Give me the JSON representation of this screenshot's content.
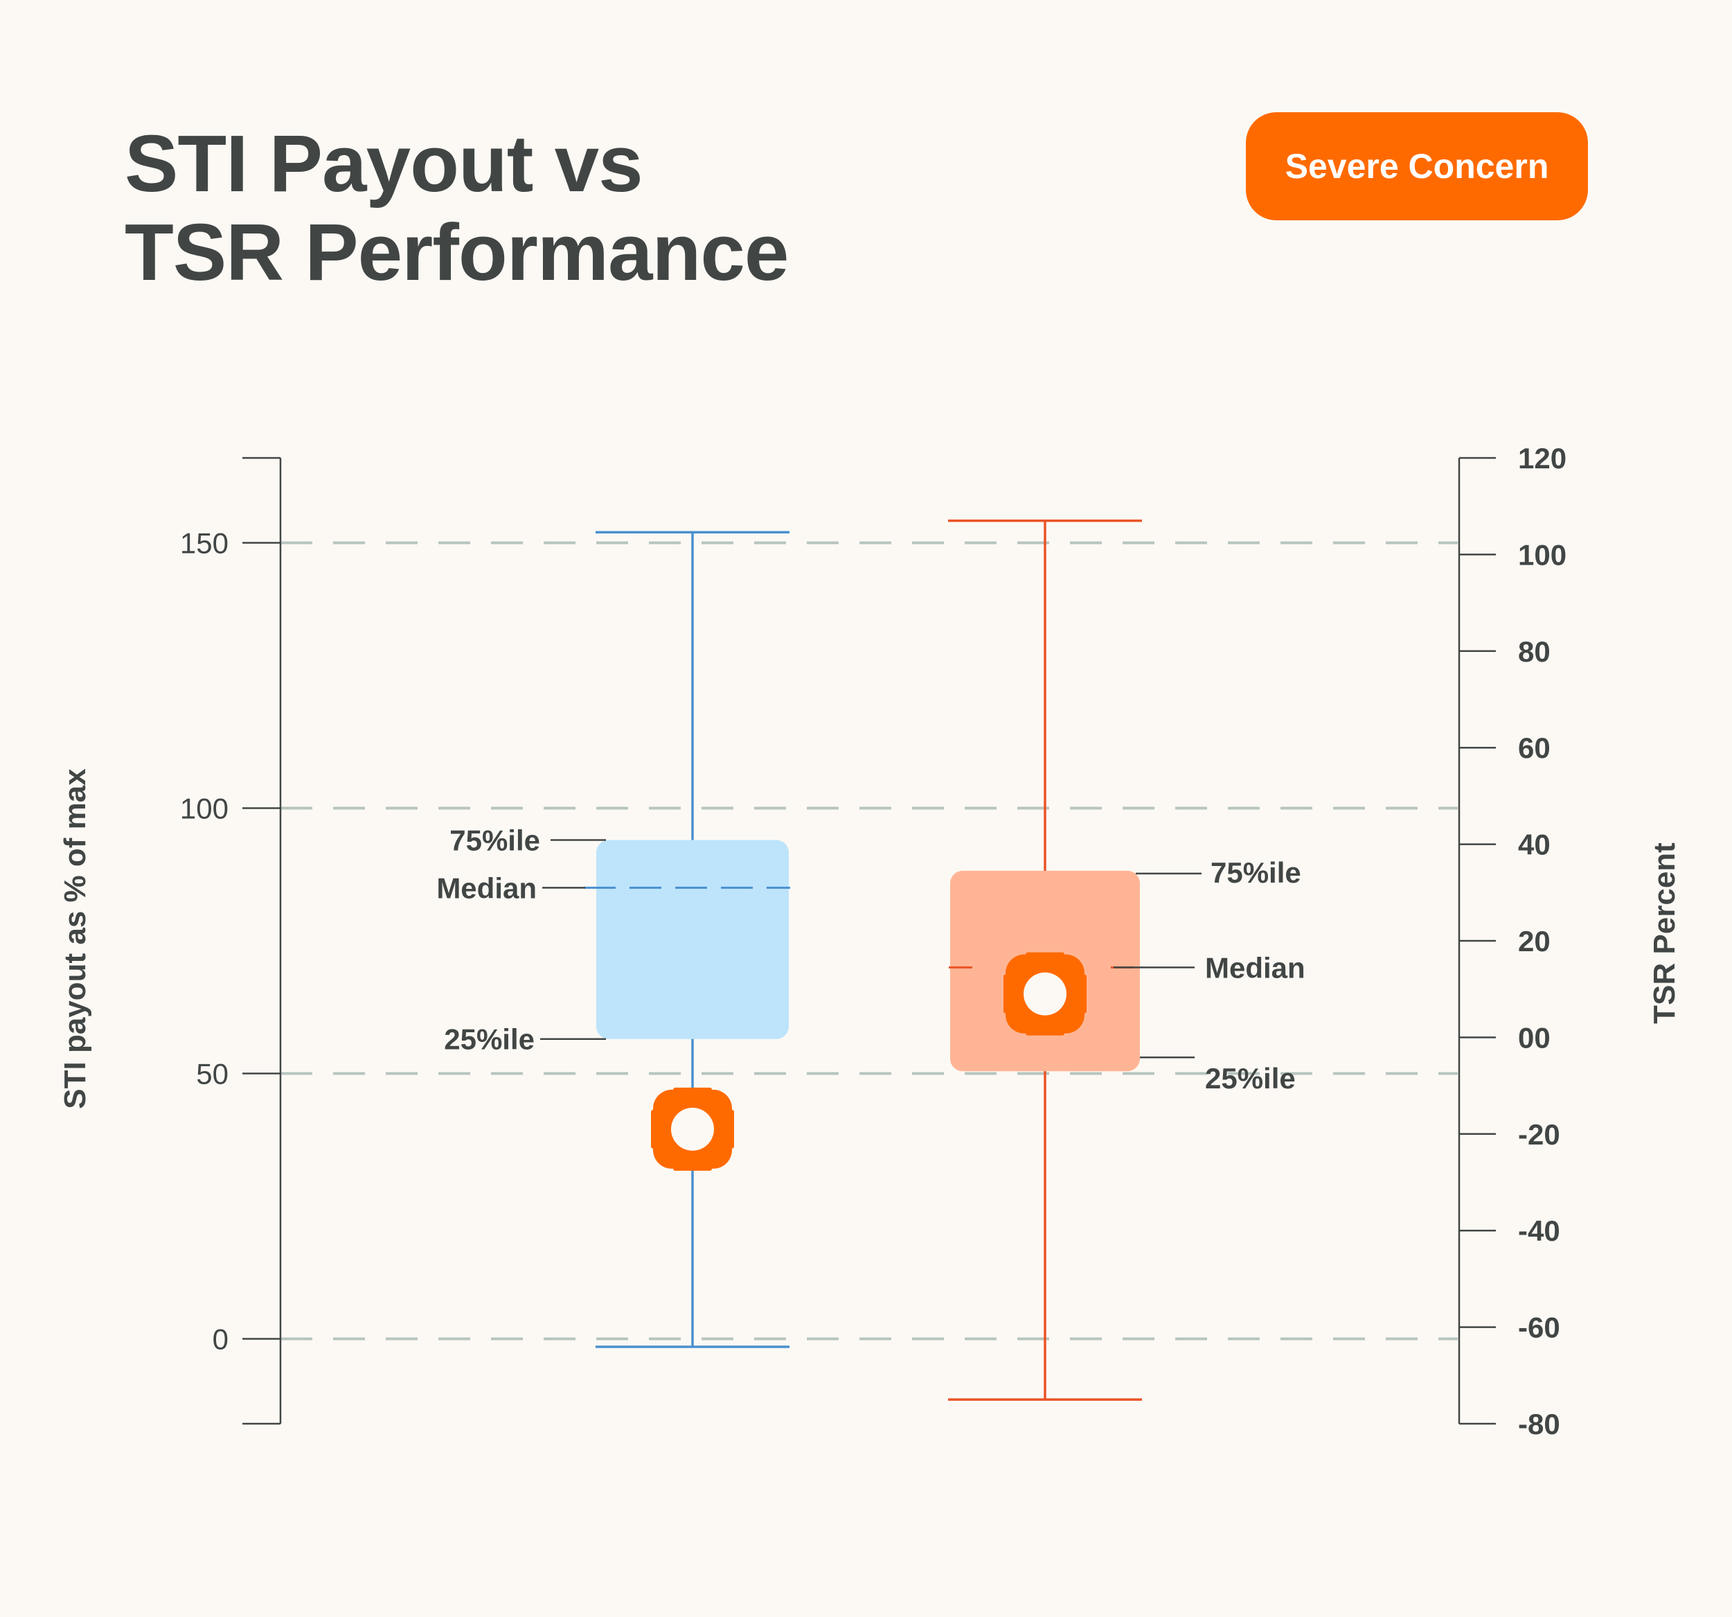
{
  "header": {
    "title_line1": "STI Payout vs",
    "title_line2": "TSR Performance",
    "badge": "Severe Concern"
  },
  "colors": {
    "background": "#fcf9f4",
    "text": "#414645",
    "badge": "#ff6a00",
    "grid": "#b7c5bf",
    "left_box_fill": "#bde4fb",
    "left_box_line": "#4a90d0",
    "right_box_fill": "#ffb595",
    "right_box_line": "#ea5428",
    "marker": "#ff6a00"
  },
  "chart_data": {
    "type": "box",
    "left_axis": {
      "label": "STI payout as % of max",
      "range": [
        -16,
        166
      ],
      "ticks": [
        0,
        50,
        100,
        150
      ],
      "tick_labels": [
        "0",
        "50",
        "100",
        "150"
      ]
    },
    "right_axis": {
      "label": "TSR Percent",
      "range": [
        -80,
        120
      ],
      "ticks": [
        120,
        100,
        80,
        60,
        40,
        20,
        0,
        -20,
        -40,
        -60,
        -80
      ],
      "tick_labels": [
        "120",
        "100",
        "80",
        "60",
        "40",
        "20",
        "00",
        "-20",
        "-40",
        "-60",
        "-80"
      ]
    },
    "grid": {
      "horizontal_dashed": true,
      "at_left_values": [
        0,
        50,
        100,
        150
      ]
    },
    "boxes": [
      {
        "axis": "left",
        "whisker_low": -1.5,
        "q1": 56.5,
        "median": 85,
        "q3": 94,
        "whisker_high": 152,
        "marker": 39.5,
        "labels": {
          "q3": "75%ile",
          "median": "Median",
          "q1": "25%ile"
        }
      },
      {
        "axis": "right",
        "whisker_low": -75,
        "q1": -7,
        "median": 14.5,
        "q3": 34.5,
        "whisker_high": 107,
        "marker": 9,
        "labels": {
          "q3": "75%ile",
          "median": "Median",
          "q1": "25%ile"
        }
      }
    ]
  }
}
